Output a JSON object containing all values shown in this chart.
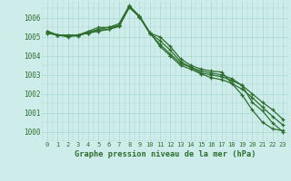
{
  "title": "Graphe pression niveau de la mer (hPa)",
  "background_color": "#ceecea",
  "grid_color": "#a8d8d4",
  "line_color": "#2d6e2d",
  "x_ticks": [
    0,
    1,
    2,
    3,
    4,
    5,
    6,
    7,
    8,
    9,
    10,
    11,
    12,
    13,
    14,
    15,
    16,
    17,
    18,
    19,
    20,
    21,
    22,
    23
  ],
  "y_ticks": [
    1000,
    1001,
    1002,
    1003,
    1004,
    1005,
    1006
  ],
  "ylim": [
    999.5,
    1006.9
  ],
  "xlim": [
    -0.3,
    23.3
  ],
  "series": [
    [
      1005.2,
      1005.1,
      1005.1,
      1005.1,
      1005.3,
      1005.5,
      1005.5,
      1005.6,
      1006.6,
      1006.05,
      1005.2,
      1005.0,
      1004.5,
      1003.85,
      1003.5,
      1003.3,
      1003.2,
      1003.15,
      1002.55,
      1001.95,
      1001.15,
      1000.5,
      1000.15,
      1000.05
    ],
    [
      1005.2,
      1005.1,
      1005.0,
      1005.1,
      1005.2,
      1005.35,
      1005.4,
      1005.55,
      1006.55,
      1006.05,
      1005.2,
      1004.8,
      1004.3,
      1003.7,
      1003.4,
      1003.2,
      1003.1,
      1003.0,
      1002.8,
      1002.45,
      1001.55,
      1001.1,
      1000.45,
      1000.0
    ],
    [
      1005.3,
      1005.1,
      1005.05,
      1005.1,
      1005.2,
      1005.3,
      1005.4,
      1005.6,
      1006.6,
      1006.1,
      1005.2,
      1004.6,
      1004.1,
      1003.6,
      1003.4,
      1003.1,
      1003.0,
      1002.9,
      1002.7,
      1002.45,
      1002.0,
      1001.55,
      1001.15,
      1000.65
    ],
    [
      1005.3,
      1005.1,
      1005.05,
      1005.05,
      1005.25,
      1005.4,
      1005.5,
      1005.7,
      1006.65,
      1006.1,
      1005.25,
      1004.5,
      1004.0,
      1003.5,
      1003.3,
      1003.05,
      1002.85,
      1002.75,
      1002.55,
      1002.25,
      1001.8,
      1001.3,
      1000.8,
      1000.35
    ]
  ]
}
